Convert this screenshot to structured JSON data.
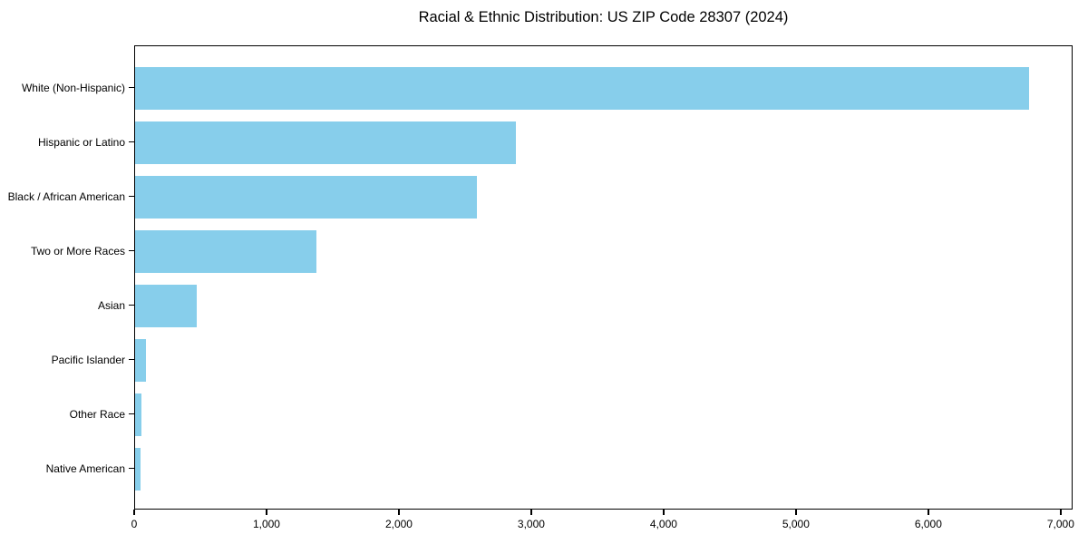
{
  "chart_data": {
    "type": "bar",
    "orientation": "horizontal",
    "title": "Racial & Ethnic Distribution: US ZIP Code 28307 (2024)",
    "categories": [
      "White (Non-Hispanic)",
      "Hispanic or Latino",
      "Black / African American",
      "Two or More Races",
      "Asian",
      "Pacific Islander",
      "Other Race",
      "Native American"
    ],
    "values": [
      6765,
      2880,
      2585,
      1375,
      470,
      85,
      45,
      40
    ],
    "xlabel": "",
    "ylabel": "",
    "xlim": [
      0,
      7090
    ],
    "xticks": [
      0,
      1000,
      2000,
      3000,
      4000,
      5000,
      6000,
      7000
    ],
    "xtick_labels": [
      "0",
      "1,000",
      "2,000",
      "3,000",
      "4,000",
      "5,000",
      "6,000",
      "7,000"
    ],
    "bar_color": "#87CEEB",
    "axis_color": "#000000",
    "background_color": "#FFFFFF",
    "grid": false,
    "legend": null
  }
}
